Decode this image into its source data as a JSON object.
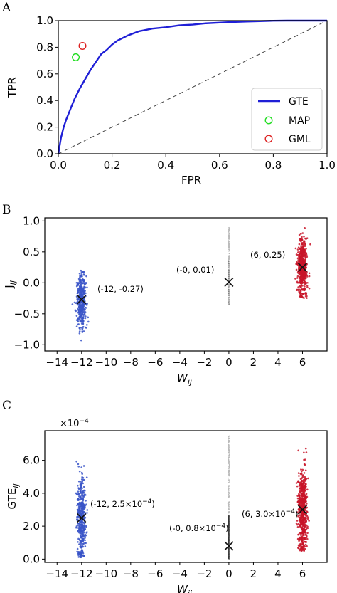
{
  "chart_data": [
    {
      "panel_label": "A",
      "type": "line",
      "xlabel": "FPR",
      "ylabel": "TPR",
      "xlim": [
        0.0,
        1.0
      ],
      "ylim": [
        0.0,
        1.0
      ],
      "xticks": [
        "0.0",
        "0.2",
        "0.4",
        "0.6",
        "0.8",
        "1.0"
      ],
      "yticks": [
        "0.0",
        "0.2",
        "0.4",
        "0.6",
        "0.8",
        "1.0"
      ],
      "legend_position": "lower-right",
      "series": [
        {
          "name": "GTE",
          "color": "#1f1fd6",
          "style": "solid",
          "x": [
            0.0,
            0.005,
            0.01,
            0.02,
            0.03,
            0.04,
            0.05,
            0.06,
            0.08,
            0.1,
            0.12,
            0.14,
            0.16,
            0.18,
            0.2,
            0.22,
            0.24,
            0.26,
            0.3,
            0.35,
            0.4,
            0.45,
            0.5,
            0.55,
            0.6,
            0.65,
            0.7,
            0.75,
            0.8,
            0.85,
            0.9,
            1.0
          ],
          "y": [
            0.0,
            0.06,
            0.12,
            0.2,
            0.26,
            0.31,
            0.36,
            0.41,
            0.49,
            0.56,
            0.63,
            0.69,
            0.75,
            0.78,
            0.82,
            0.85,
            0.87,
            0.89,
            0.92,
            0.94,
            0.95,
            0.965,
            0.97,
            0.98,
            0.985,
            0.99,
            0.993,
            0.996,
            0.999,
            1.0,
            1.0,
            1.0
          ]
        },
        {
          "name": "MAP",
          "color": "#22dd22",
          "style": "open-circle",
          "x": [
            0.065
          ],
          "y": [
            0.725
          ]
        },
        {
          "name": "GML",
          "color": "#dd2222",
          "style": "open-circle",
          "x": [
            0.09
          ],
          "y": [
            0.81
          ]
        },
        {
          "color": "#444444",
          "style": "dashed",
          "x": [
            0.0,
            1.0
          ],
          "y": [
            0.0,
            1.0
          ]
        }
      ]
    },
    {
      "panel_label": "B",
      "type": "scatter",
      "xlabel": "W",
      "xlabel_sub": "ij",
      "ylabel": "J",
      "ylabel_sub": "ij",
      "xlim": [
        -15,
        8
      ],
      "ylim": [
        -1.1,
        1.05
      ],
      "xticks": [
        "−14",
        "−12",
        "−10",
        "−8",
        "−6",
        "−4",
        "−2",
        "0",
        "2",
        "4",
        "6"
      ],
      "yticks": [
        "−1.0",
        "−0.5",
        "0.0",
        "0.5",
        "1.0"
      ],
      "groups": [
        {
          "x": -12,
          "color": "#3a55c8",
          "mean": -0.27,
          "y_min": -0.95,
          "y_max": 0.2,
          "label": "(-12, -0.27)"
        },
        {
          "x": 0,
          "color": "#bbbbbb",
          "mean": 0.01,
          "y_min": -0.35,
          "y_max": 0.9,
          "label": "(-0, 0.01)"
        },
        {
          "x": 6,
          "color": "#c81428",
          "mean": 0.25,
          "y_min": -0.25,
          "y_max": 0.92,
          "label": "(6, 0.25)"
        }
      ]
    },
    {
      "panel_label": "C",
      "type": "scatter",
      "xlabel": "W",
      "xlabel_sub": "ij",
      "ylabel": "GTE",
      "ylabel_sub": "ij",
      "offset_text": "×10",
      "offset_exp": "−4",
      "xlim": [
        -15,
        8
      ],
      "ylim": [
        -0.2,
        7.8
      ],
      "xticks": [
        "−14",
        "−12",
        "−10",
        "−8",
        "−6",
        "−4",
        "−2",
        "0",
        "2",
        "4",
        "6"
      ],
      "yticks": [
        "0.0",
        "2.0",
        "4.0",
        "6.0"
      ],
      "groups": [
        {
          "x": -12,
          "color": "#3a55c8",
          "mean": 2.5,
          "y_min": 0.1,
          "y_max": 7.2,
          "label": "(-12, 2.5×10",
          "label_exp": "−4",
          "label_end": ")"
        },
        {
          "x": 0,
          "color": "#bbbbbb",
          "mean": 0.8,
          "y_min": 0.0,
          "y_max": 7.5,
          "label": "(-0, 0.8×10",
          "label_exp": "−4",
          "label_end": ")"
        },
        {
          "x": 6,
          "color": "#c81428",
          "mean": 3.0,
          "y_min": 0.5,
          "y_max": 7.0,
          "label": "(6, 3.0×10",
          "label_exp": "−4",
          "label_end": ")"
        }
      ]
    }
  ]
}
